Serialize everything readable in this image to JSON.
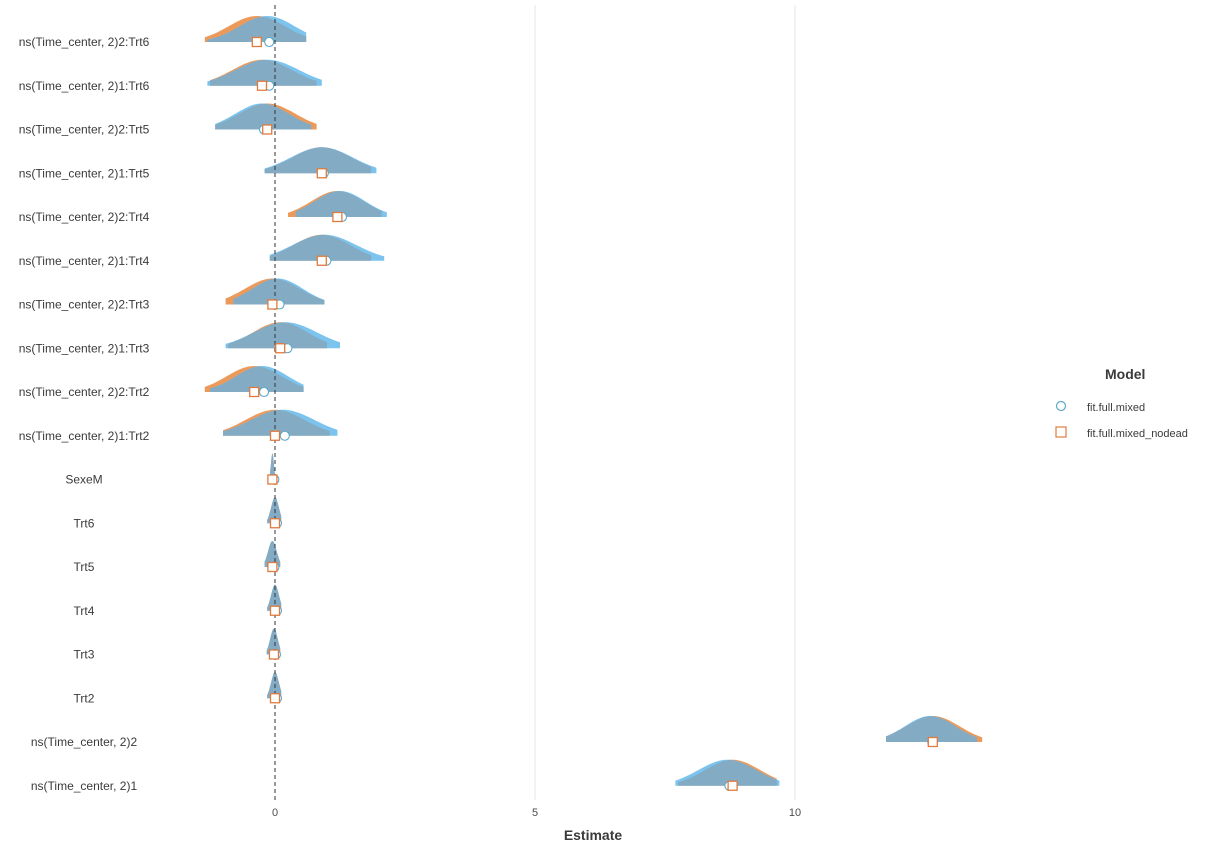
{
  "chart_data": {
    "type": "density-ridge",
    "xlabel": "Estimate",
    "ylabel": "",
    "xlim": [
      -5.3,
      14.5
    ],
    "x_ticks": [
      0,
      5,
      10
    ],
    "x_tick_labels": [
      "0",
      "5",
      "10"
    ],
    "reference_line_x": 0,
    "grid": "vertical major gridlines only",
    "legend": {
      "title": "Model",
      "position": "right",
      "entries": [
        {
          "label": "fit.full.mixed",
          "shape": "circle"
        },
        {
          "label": "fit.full.mixed_nodead",
          "shape": "square"
        }
      ]
    },
    "colors": {
      "fit.full.mixed": "#7cc3ee",
      "fit.full.mixed_nodead": "#ec9a5b",
      "overlap": "#83abc4",
      "marker": "#e07b3d",
      "marker_circle": "#5fa8c8"
    },
    "terms": [
      {
        "label": "ns(Time_center, 2)2:Trt6",
        "mixed": {
          "est": -0.15,
          "lo": -1.3,
          "hi": 0.6
        },
        "nodead": {
          "est": -0.35,
          "lo": -1.35,
          "hi": 0.6
        }
      },
      {
        "label": "ns(Time_center, 2)1:Trt6",
        "mixed": {
          "est": -0.15,
          "lo": -1.3,
          "hi": 0.9
        },
        "nodead": {
          "est": -0.25,
          "lo": -1.25,
          "hi": 0.8
        }
      },
      {
        "label": "ns(Time_center, 2)2:Trt5",
        "mixed": {
          "est": -0.25,
          "lo": -1.15,
          "hi": 0.7
        },
        "nodead": {
          "est": -0.15,
          "lo": -1.15,
          "hi": 0.8
        }
      },
      {
        "label": "ns(Time_center, 2)1:Trt5",
        "mixed": {
          "est": 0.9,
          "lo": -0.2,
          "hi": 1.95
        },
        "nodead": {
          "est": 0.9,
          "lo": -0.2,
          "hi": 1.85
        }
      },
      {
        "label": "ns(Time_center, 2)2:Trt4",
        "mixed": {
          "est": 1.25,
          "lo": 0.4,
          "hi": 2.15
        },
        "nodead": {
          "est": 1.2,
          "lo": 0.25,
          "hi": 2.05
        }
      },
      {
        "label": "ns(Time_center, 2)1:Trt4",
        "mixed": {
          "est": 0.95,
          "lo": -0.1,
          "hi": 2.1
        },
        "nodead": {
          "est": 0.9,
          "lo": -0.1,
          "hi": 1.85
        }
      },
      {
        "label": "ns(Time_center, 2)2:Trt3",
        "mixed": {
          "est": 0.05,
          "lo": -0.8,
          "hi": 0.95
        },
        "nodead": {
          "est": -0.05,
          "lo": -0.95,
          "hi": 0.95
        }
      },
      {
        "label": "ns(Time_center, 2)1:Trt3",
        "mixed": {
          "est": 0.2,
          "lo": -0.95,
          "hi": 1.25
        },
        "nodead": {
          "est": 0.1,
          "lo": -0.9,
          "hi": 1.0
        }
      },
      {
        "label": "ns(Time_center, 2)2:Trt2",
        "mixed": {
          "est": -0.25,
          "lo": -1.25,
          "hi": 0.55
        },
        "nodead": {
          "est": -0.4,
          "lo": -1.35,
          "hi": 0.55
        }
      },
      {
        "label": "ns(Time_center, 2)1:Trt2",
        "mixed": {
          "est": 0.15,
          "lo": -1.0,
          "hi": 1.2
        },
        "nodead": {
          "est": 0.0,
          "lo": -1.0,
          "hi": 1.05
        }
      },
      {
        "label": "SexeM",
        "mixed": {
          "est": -0.05,
          "lo": -0.1,
          "hi": 0.0
        },
        "nodead": {
          "est": -0.05,
          "lo": -0.1,
          "hi": 0.0
        }
      },
      {
        "label": "Trt6",
        "mixed": {
          "est": 0.0,
          "lo": -0.15,
          "hi": 0.12
        },
        "nodead": {
          "est": 0.0,
          "lo": -0.15,
          "hi": 0.12
        }
      },
      {
        "label": "Trt5",
        "mixed": {
          "est": -0.05,
          "lo": -0.2,
          "hi": 0.1
        },
        "nodead": {
          "est": -0.05,
          "lo": -0.2,
          "hi": 0.1
        }
      },
      {
        "label": "Trt4",
        "mixed": {
          "est": 0.0,
          "lo": -0.15,
          "hi": 0.12
        },
        "nodead": {
          "est": 0.0,
          "lo": -0.15,
          "hi": 0.12
        }
      },
      {
        "label": "Trt3",
        "mixed": {
          "est": -0.02,
          "lo": -0.16,
          "hi": 0.1
        },
        "nodead": {
          "est": -0.02,
          "lo": -0.16,
          "hi": 0.1
        }
      },
      {
        "label": "Trt2",
        "mixed": {
          "est": 0.0,
          "lo": -0.15,
          "hi": 0.12
        },
        "nodead": {
          "est": 0.0,
          "lo": -0.15,
          "hi": 0.12
        }
      },
      {
        "label": "ns(Time_center, 2)2",
        "mixed": {
          "est": 12.6,
          "lo": 11.75,
          "hi": 13.5
        },
        "nodead": {
          "est": 12.65,
          "lo": 11.75,
          "hi": 13.6
        }
      },
      {
        "label": "ns(Time_center, 2)1",
        "mixed": {
          "est": 8.7,
          "lo": 7.7,
          "hi": 9.7
        },
        "nodead": {
          "est": 8.8,
          "lo": 7.75,
          "hi": 9.65
        }
      }
    ]
  }
}
